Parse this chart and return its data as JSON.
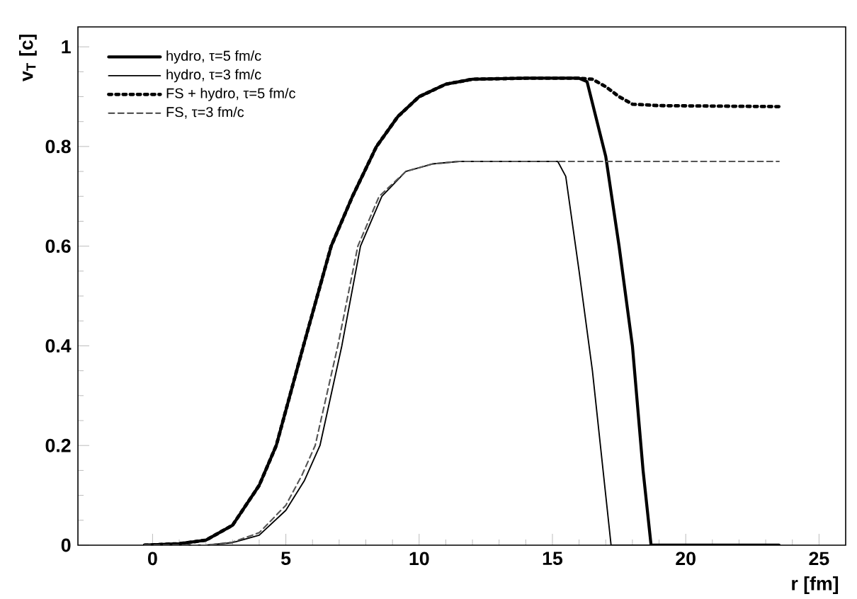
{
  "chart_data": {
    "type": "line",
    "xlabel": "r  [fm]",
    "ylabel": "v$_{T}$ [c]",
    "xlim": [
      -2.8,
      26
    ],
    "ylim": [
      0,
      1.04
    ],
    "xticks": [
      0,
      5,
      10,
      15,
      20,
      25
    ],
    "yticks": [
      0,
      0.2,
      0.4,
      0.6,
      0.8,
      1
    ],
    "grid": false,
    "legend": "top left",
    "marker": "none",
    "series": [
      {
        "name": "hydro, τ=5 fm/c",
        "color": "#000000",
        "line_style": "solid",
        "x": [
          -0.3,
          1,
          2,
          3,
          4,
          4.64,
          5.66,
          6.7,
          7.5,
          8.4,
          9.2,
          10,
          11,
          12,
          14,
          16,
          16.3,
          17,
          17.5,
          18,
          18.4,
          18.7,
          23.5
        ],
        "values": [
          0,
          0.003,
          0.01,
          0.04,
          0.12,
          0.2,
          0.4,
          0.6,
          0.7,
          0.8,
          0.86,
          0.9,
          0.925,
          0.935,
          0.937,
          0.937,
          0.93,
          0.78,
          0.6,
          0.4,
          0.15,
          0,
          0
        ]
      },
      {
        "name": "hydro, τ=3 fm/c",
        "color": "#000000",
        "line_style": "solid",
        "x": [
          -0.3,
          2,
          3,
          4,
          5,
          5.7,
          6.28,
          7.1,
          7.8,
          8.6,
          9.5,
          10.5,
          11.5,
          15.2,
          15.5,
          16,
          16.5,
          17,
          17.2,
          23.5
        ],
        "values": [
          0,
          0,
          0.005,
          0.02,
          0.07,
          0.13,
          0.2,
          0.4,
          0.6,
          0.7,
          0.75,
          0.765,
          0.77,
          0.77,
          0.74,
          0.55,
          0.35,
          0.1,
          0,
          0
        ]
      },
      {
        "name": "FS + hydro, τ=5 fm/c",
        "color": "#000000",
        "line_style": "dotted",
        "x": [
          -0.3,
          1,
          2,
          3,
          4,
          4.64,
          5.66,
          6.7,
          7.5,
          8.4,
          9.2,
          10,
          11,
          12,
          14,
          16,
          16.5,
          17,
          17.5,
          18,
          19,
          23.5
        ],
        "values": [
          0,
          0.003,
          0.01,
          0.04,
          0.12,
          0.2,
          0.4,
          0.6,
          0.7,
          0.8,
          0.86,
          0.9,
          0.925,
          0.935,
          0.937,
          0.937,
          0.935,
          0.92,
          0.9,
          0.885,
          0.882,
          0.88
        ]
      },
      {
        "name": "FS, τ=3 fm/c",
        "color": "#555555",
        "line_style": "dashed",
        "x": [
          -0.3,
          2,
          3,
          4,
          5,
          5.6,
          6.1,
          6.95,
          7.7,
          8.5,
          9.5,
          10.5,
          11.5,
          15,
          23.5
        ],
        "values": [
          0,
          0,
          0.006,
          0.025,
          0.08,
          0.14,
          0.2,
          0.4,
          0.6,
          0.7,
          0.75,
          0.765,
          0.77,
          0.77,
          0.77
        ]
      }
    ]
  }
}
